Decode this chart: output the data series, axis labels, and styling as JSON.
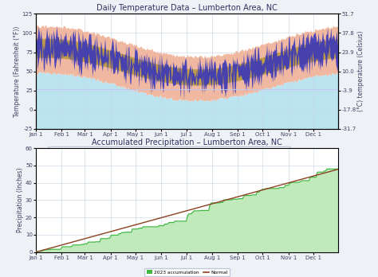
{
  "title_temp": "Daily Temperature Data – Lumberton Area, NC",
  "title_precip": "Accumulated Precipitation – Lumberton Area, NC",
  "temp_ylim": [
    -25,
    125
  ],
  "temp_yticks": [
    -25,
    0,
    25,
    50,
    75,
    100,
    125
  ],
  "temp_ylabel": "Temperature (Fahrenheit (°F))",
  "temp_ylabel_right": "(°C) temperature (Celsius)",
  "precip_ylim": [
    0,
    60
  ],
  "precip_yticks": [
    0,
    10,
    20,
    30,
    40,
    50,
    60
  ],
  "precip_ylabel": "Precipitation (Inches)",
  "bg_color": "#eef2f7",
  "plot_bg": "#ffffff",
  "grid_color": "#c5d5e5",
  "record_max_color": "#f0b8a0",
  "record_min_color": "#bce4f0",
  "normal_range_color": "#b8983a",
  "observed_color": "#3535bb",
  "precip_2023_color": "#40b840",
  "precip_normal_color": "#8b4020",
  "precip_fill_color": "#c0eabc",
  "horiz_line_color": "#c0c8f0",
  "x_month_labels": [
    "Jan 1",
    "Feb 1",
    "Mar 1",
    "Apr 1",
    "May 1",
    "Jun 1",
    "Jul 1",
    "Aug 1",
    "Sep 1",
    "Oct 1",
    "Nov 1",
    "Dec 1"
  ],
  "x_month_positions": [
    0,
    31,
    59,
    90,
    120,
    151,
    181,
    212,
    243,
    273,
    304,
    334
  ],
  "n_days": 365,
  "title_fontsize": 7,
  "axis_fontsize": 5.5,
  "tick_fontsize": 5
}
